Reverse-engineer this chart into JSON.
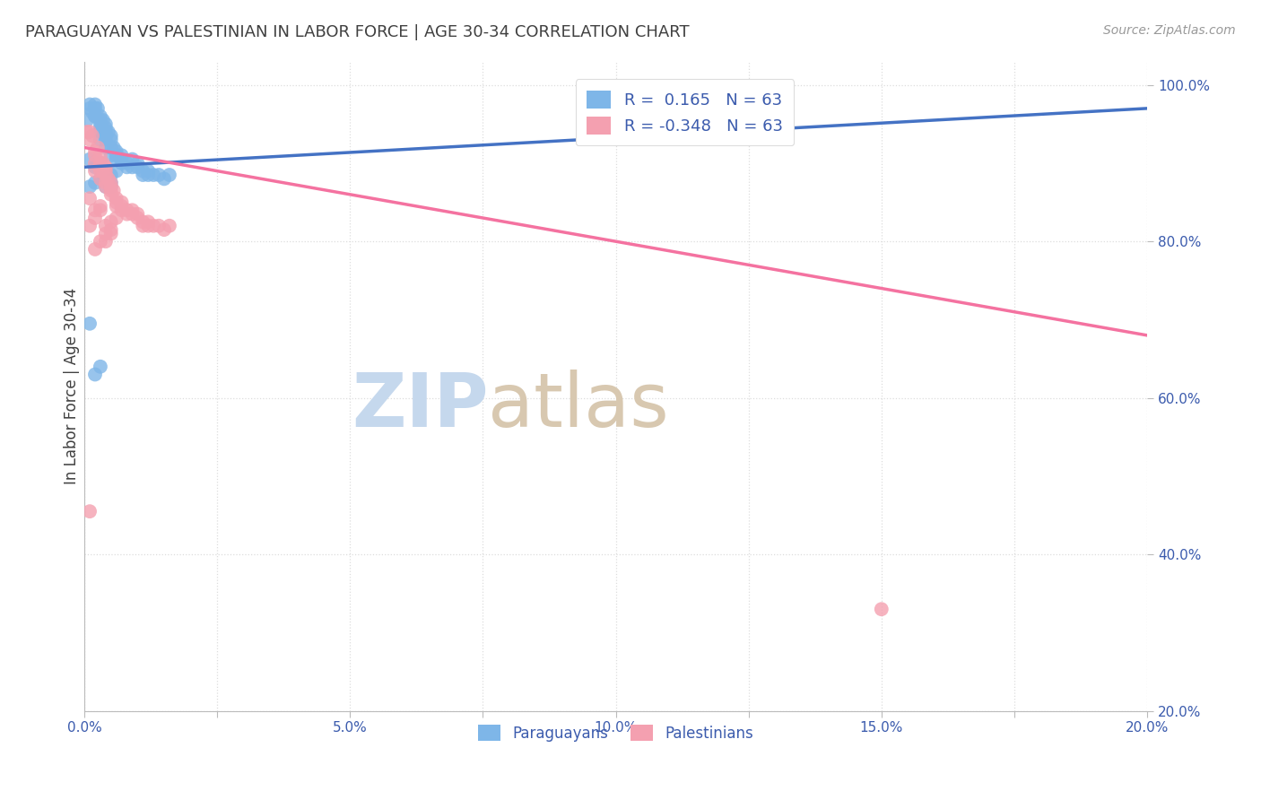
{
  "title": "PARAGUAYAN VS PALESTINIAN IN LABOR FORCE | AGE 30-34 CORRELATION CHART",
  "source": "Source: ZipAtlas.com",
  "xlabel_label": "Paraguayans",
  "ylabel_label": "Palestinians",
  "ylabel": "In Labor Force | Age 30-34",
  "xlim": [
    0.0,
    0.2
  ],
  "ylim": [
    0.2,
    1.03
  ],
  "xticks": [
    0.0,
    0.025,
    0.05,
    0.075,
    0.1,
    0.125,
    0.15,
    0.175,
    0.2
  ],
  "xticklabels": [
    "0.0%",
    "",
    "5.0%",
    "",
    "10.0%",
    "",
    "15.0%",
    "",
    "20.0%"
  ],
  "yticks_right": [
    0.2,
    0.4,
    0.6,
    0.8,
    1.0
  ],
  "yticklabels_right": [
    "20.0%",
    "40.0%",
    "60.0%",
    "80.0%",
    "100.0%"
  ],
  "r_paraguayan": 0.165,
  "n_paraguayan": 63,
  "r_palestinian": -0.348,
  "n_palestinian": 63,
  "blue_color": "#7EB6E8",
  "pink_color": "#F4A0B0",
  "trend_blue": "#4472C4",
  "trend_pink": "#F472A0",
  "legend_text_color": "#3B5BAD",
  "axis_color": "#BBBBBB",
  "grid_color": "#DDDDDD",
  "title_color": "#404040",
  "source_color": "#999999",
  "watermark_zip_color": "#C5D8ED",
  "watermark_atlas_color": "#D8C8B0",
  "paraguayan_x": [
    0.0005,
    0.001,
    0.001,
    0.0015,
    0.002,
    0.002,
    0.002,
    0.0025,
    0.003,
    0.003,
    0.003,
    0.003,
    0.003,
    0.0035,
    0.004,
    0.004,
    0.004,
    0.004,
    0.004,
    0.0045,
    0.005,
    0.005,
    0.005,
    0.005,
    0.0055,
    0.006,
    0.006,
    0.006,
    0.007,
    0.007,
    0.007,
    0.008,
    0.008,
    0.009,
    0.009,
    0.01,
    0.01,
    0.011,
    0.011,
    0.012,
    0.012,
    0.013,
    0.014,
    0.015,
    0.016,
    0.001,
    0.002,
    0.003,
    0.004,
    0.005,
    0.001,
    0.002,
    0.003,
    0.004,
    0.005,
    0.006,
    0.001,
    0.002,
    0.003,
    0.002,
    0.003,
    0.004,
    0.005
  ],
  "paraguayan_y": [
    0.955,
    0.975,
    0.97,
    0.965,
    0.975,
    0.97,
    0.96,
    0.97,
    0.96,
    0.955,
    0.95,
    0.945,
    0.94,
    0.955,
    0.945,
    0.94,
    0.935,
    0.95,
    0.93,
    0.94,
    0.935,
    0.92,
    0.93,
    0.91,
    0.92,
    0.915,
    0.91,
    0.905,
    0.91,
    0.905,
    0.9,
    0.9,
    0.895,
    0.895,
    0.905,
    0.9,
    0.895,
    0.89,
    0.885,
    0.89,
    0.885,
    0.885,
    0.885,
    0.88,
    0.885,
    0.87,
    0.875,
    0.88,
    0.87,
    0.875,
    0.905,
    0.895,
    0.9,
    0.88,
    0.885,
    0.89,
    0.695,
    0.63,
    0.64,
    0.96,
    0.93,
    0.92,
    0.87
  ],
  "palestinian_x": [
    0.0005,
    0.001,
    0.001,
    0.0015,
    0.002,
    0.002,
    0.002,
    0.0025,
    0.003,
    0.003,
    0.003,
    0.003,
    0.003,
    0.0035,
    0.004,
    0.004,
    0.004,
    0.004,
    0.004,
    0.0045,
    0.005,
    0.005,
    0.005,
    0.005,
    0.0055,
    0.006,
    0.006,
    0.006,
    0.007,
    0.007,
    0.007,
    0.008,
    0.008,
    0.009,
    0.009,
    0.01,
    0.01,
    0.011,
    0.011,
    0.012,
    0.012,
    0.013,
    0.014,
    0.015,
    0.016,
    0.001,
    0.002,
    0.003,
    0.004,
    0.005,
    0.001,
    0.002,
    0.003,
    0.004,
    0.005,
    0.006,
    0.001,
    0.002,
    0.003,
    0.002,
    0.15,
    0.004,
    0.005
  ],
  "palestinian_y": [
    0.94,
    0.94,
    0.93,
    0.935,
    0.915,
    0.91,
    0.9,
    0.92,
    0.91,
    0.9,
    0.895,
    0.89,
    0.88,
    0.9,
    0.89,
    0.885,
    0.875,
    0.895,
    0.87,
    0.88,
    0.875,
    0.865,
    0.87,
    0.86,
    0.865,
    0.855,
    0.85,
    0.845,
    0.85,
    0.845,
    0.84,
    0.84,
    0.835,
    0.835,
    0.84,
    0.835,
    0.83,
    0.825,
    0.82,
    0.825,
    0.82,
    0.82,
    0.82,
    0.815,
    0.82,
    0.82,
    0.83,
    0.84,
    0.81,
    0.815,
    0.855,
    0.84,
    0.845,
    0.82,
    0.825,
    0.83,
    0.455,
    0.79,
    0.8,
    0.89,
    0.33,
    0.8,
    0.81
  ],
  "trend_blue_x0": 0.0,
  "trend_blue_x1": 0.2,
  "trend_blue_y0": 0.895,
  "trend_blue_y1": 0.97,
  "trend_pink_x0": 0.0,
  "trend_pink_x1": 0.2,
  "trend_pink_y0": 0.92,
  "trend_pink_y1": 0.68
}
